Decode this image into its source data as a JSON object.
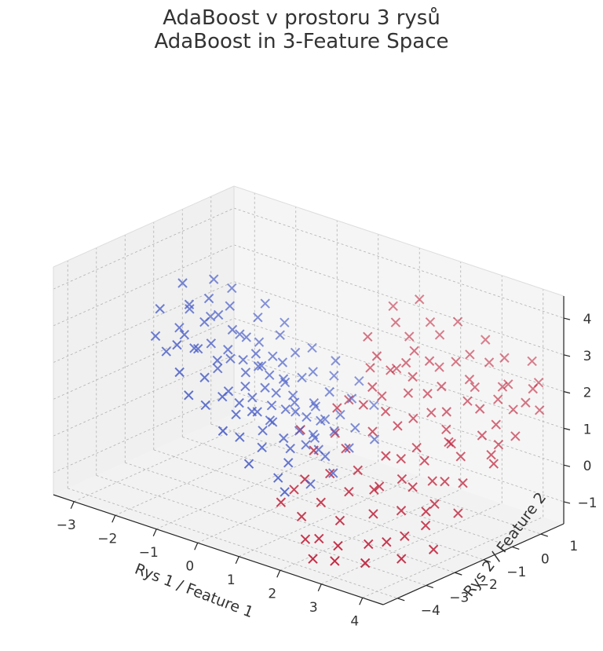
{
  "chart_data": {
    "type": "scatter",
    "projection": "3d",
    "marker": "x",
    "title": "AdaBoost v prostoru 3 rysů",
    "subtitle": "AdaBoost in 3-Feature Space",
    "xlabel": "Rys 1 / Feature 1",
    "ylabel": "Rys 2 / Feature 2",
    "zlabel": "",
    "xticks": [
      "−3",
      "−2",
      "−1",
      "0",
      "1",
      "2",
      "3",
      "4"
    ],
    "yticks": [
      "−4",
      "−3",
      "−2",
      "−1",
      "0",
      "1"
    ],
    "zticks": [
      "−1",
      "0",
      "1",
      "2",
      "3",
      "4"
    ],
    "xlim": [
      -3.5,
      4.5
    ],
    "ylim": [
      -4.5,
      1.8
    ],
    "zlim": [
      -1.6,
      4.6
    ],
    "grid": true,
    "colors": {
      "class0": "#4b5fc8",
      "class1": "#c0213a",
      "pane": "#f2f2f2",
      "grid": "#b0b0b0",
      "axis": "#222222",
      "text": "#333333"
    },
    "series": [
      {
        "values_xyz": [
          [
            -3.0,
            -1.5,
            2.6
          ],
          [
            -2.8,
            -1.0,
            3.2
          ],
          [
            -2.5,
            -1.2,
            2.8
          ],
          [
            -2.3,
            -0.8,
            2.9
          ],
          [
            -2.6,
            -1.4,
            2.2
          ],
          [
            -2.2,
            -1.1,
            2.4
          ],
          [
            -2.0,
            -0.9,
            2.6
          ],
          [
            -2.4,
            -0.6,
            2.3
          ],
          [
            -1.9,
            -1.3,
            2.0
          ],
          [
            -1.8,
            -0.7,
            2.2
          ],
          [
            -2.1,
            -1.6,
            1.9
          ],
          [
            -1.7,
            -1.0,
            1.8
          ],
          [
            -1.6,
            -0.5,
            2.0
          ],
          [
            -1.5,
            -1.2,
            1.7
          ],
          [
            -1.9,
            -0.3,
            1.9
          ],
          [
            -1.4,
            -0.9,
            1.6
          ],
          [
            -1.6,
            -1.5,
            1.5
          ],
          [
            -1.3,
            -0.6,
            1.7
          ],
          [
            -1.2,
            -1.1,
            1.4
          ],
          [
            -1.5,
            -0.2,
            1.8
          ],
          [
            -1.1,
            -0.8,
            1.5
          ],
          [
            -1.0,
            -1.4,
            1.2
          ],
          [
            -1.3,
            -0.4,
            1.3
          ],
          [
            -0.9,
            -0.7,
            1.3
          ],
          [
            -1.2,
            -1.7,
            1.1
          ],
          [
            -0.8,
            -1.0,
            1.1
          ],
          [
            -1.0,
            -0.1,
            1.4
          ],
          [
            -0.7,
            -0.5,
            1.2
          ],
          [
            -0.9,
            -1.3,
            0.9
          ],
          [
            -0.6,
            -0.9,
            1.0
          ],
          [
            -0.8,
            -0.3,
            1.0
          ],
          [
            -0.5,
            -1.2,
            0.8
          ],
          [
            -0.7,
            -1.6,
            0.7
          ],
          [
            -0.4,
            -0.6,
            0.9
          ],
          [
            -0.6,
            0.0,
            1.1
          ],
          [
            -0.3,
            -1.0,
            0.7
          ],
          [
            -0.5,
            -0.4,
            0.6
          ],
          [
            -0.2,
            -0.8,
            0.6
          ],
          [
            -0.4,
            -1.4,
            0.5
          ],
          [
            -0.1,
            -0.3,
            0.7
          ],
          [
            -0.3,
            -1.8,
            0.4
          ],
          [
            0.0,
            -0.7,
            0.5
          ],
          [
            -0.2,
            -0.1,
            0.5
          ],
          [
            0.1,
            -1.1,
            0.3
          ],
          [
            0.2,
            -0.5,
            0.4
          ],
          [
            0.0,
            -1.5,
            0.2
          ],
          [
            0.3,
            -0.9,
            0.2
          ],
          [
            0.1,
            -0.2,
            0.3
          ],
          [
            0.4,
            -1.3,
            0.1
          ],
          [
            0.2,
            -0.7,
            0.0
          ],
          [
            -2.7,
            -0.9,
            2.5
          ],
          [
            -2.2,
            -1.8,
            2.3
          ],
          [
            -1.8,
            -1.9,
            2.1
          ],
          [
            -1.4,
            -1.8,
            1.9
          ],
          [
            -1.1,
            -0.3,
            1.6
          ],
          [
            -0.8,
            -1.9,
            1.0
          ],
          [
            -0.5,
            -1.7,
            0.8
          ],
          [
            -0.2,
            -1.6,
            0.6
          ],
          [
            0.3,
            -1.7,
            0.1
          ],
          [
            0.5,
            -1.0,
            -0.1
          ],
          [
            -2.0,
            -0.5,
            2.7
          ],
          [
            -1.6,
            -0.1,
            2.4
          ],
          [
            -1.2,
            0.1,
            2.0
          ],
          [
            -0.9,
            0.2,
            1.6
          ],
          [
            -0.4,
            0.1,
            1.3
          ],
          [
            0.0,
            0.1,
            0.9
          ],
          [
            0.4,
            -0.1,
            0.5
          ],
          [
            0.6,
            -0.6,
            0.3
          ],
          [
            0.8,
            -1.2,
            -0.1
          ],
          [
            1.0,
            -2.0,
            -0.5
          ],
          [
            -2.9,
            -1.8,
            2.0
          ],
          [
            -2.5,
            -2.0,
            1.8
          ],
          [
            -1.5,
            -2.1,
            1.5
          ],
          [
            -1.0,
            -2.2,
            1.2
          ],
          [
            -0.6,
            -2.3,
            0.9
          ],
          [
            0.1,
            -2.4,
            0.3
          ],
          [
            0.6,
            -2.2,
            0.0
          ],
          [
            1.2,
            -1.5,
            -0.3
          ],
          [
            -1.7,
            0.3,
            2.6
          ],
          [
            -1.3,
            0.4,
            2.2
          ],
          [
            -0.7,
            0.5,
            1.7
          ],
          [
            -0.1,
            0.4,
            1.2
          ],
          [
            0.4,
            0.3,
            0.8
          ],
          [
            0.9,
            -0.3,
            0.4
          ],
          [
            -2.3,
            0.0,
            2.9
          ],
          [
            -1.9,
            -2.4,
            1.6
          ],
          [
            -1.2,
            -2.5,
            1.0
          ],
          [
            -0.3,
            -2.6,
            0.5
          ],
          [
            0.7,
            -2.7,
            -0.2
          ],
          [
            1.1,
            -0.8,
            0.1
          ],
          [
            -2.6,
            -0.2,
            3.1
          ],
          [
            -2.1,
            -2.2,
            2.2
          ],
          [
            -0.2,
            0.6,
            1.5
          ],
          [
            0.3,
            0.7,
            1.1
          ],
          [
            0.8,
            0.5,
            0.7
          ],
          [
            -1.4,
            -2.8,
            1.3
          ],
          [
            -0.5,
            -2.9,
            0.7
          ],
          [
            0.2,
            -3.0,
            0.1
          ],
          [
            1.0,
            -2.9,
            -0.4
          ],
          [
            1.3,
            -0.2,
            0.2
          ]
        ],
        "class": 0
      },
      {
        "values_xyz": [
          [
            0.5,
            0.8,
            1.5
          ],
          [
            0.8,
            0.6,
            2.0
          ],
          [
            1.0,
            1.0,
            1.6
          ],
          [
            1.2,
            0.2,
            1.2
          ],
          [
            1.5,
            0.9,
            2.3
          ],
          [
            1.7,
            0.4,
            1.4
          ],
          [
            1.9,
            1.2,
            1.9
          ],
          [
            2.1,
            0.0,
            1.0
          ],
          [
            2.3,
            0.7,
            1.7
          ],
          [
            2.5,
            1.4,
            2.4
          ],
          [
            2.7,
            0.3,
            1.3
          ],
          [
            2.9,
            1.0,
            1.8
          ],
          [
            3.1,
            -0.2,
            0.8
          ],
          [
            3.3,
            0.6,
            1.5
          ],
          [
            3.5,
            1.3,
            2.0
          ],
          [
            3.7,
            0.1,
            1.1
          ],
          [
            3.9,
            0.9,
            1.6
          ],
          [
            4.1,
            1.5,
            2.2
          ],
          [
            4.3,
            0.4,
            1.2
          ],
          [
            4.4,
            1.1,
            1.7
          ],
          [
            0.6,
            -0.5,
            0.9
          ],
          [
            0.9,
            -1.0,
            0.5
          ],
          [
            1.1,
            -0.3,
            1.1
          ],
          [
            1.3,
            -1.2,
            0.3
          ],
          [
            1.6,
            -0.7,
            0.7
          ],
          [
            1.8,
            -1.5,
            0.0
          ],
          [
            2.0,
            -0.4,
            0.9
          ],
          [
            2.2,
            -1.1,
            0.4
          ],
          [
            2.4,
            -1.8,
            -0.2
          ],
          [
            2.6,
            -0.6,
            0.6
          ],
          [
            2.8,
            -1.4,
            0.1
          ],
          [
            3.0,
            -0.9,
            0.5
          ],
          [
            3.2,
            -2.0,
            -0.4
          ],
          [
            3.4,
            -1.2,
            0.2
          ],
          [
            3.6,
            -0.5,
            0.7
          ],
          [
            3.8,
            -1.7,
            -0.1
          ],
          [
            4.0,
            -1.0,
            0.3
          ],
          [
            4.2,
            -0.3,
            0.9
          ],
          [
            0.7,
            1.4,
            2.6
          ],
          [
            1.4,
            1.6,
            2.8
          ],
          [
            2.0,
            1.7,
            3.0
          ],
          [
            2.6,
            1.8,
            2.7
          ],
          [
            3.2,
            1.6,
            2.5
          ],
          [
            3.8,
            1.7,
            2.6
          ],
          [
            1.0,
            -2.2,
            -0.3
          ],
          [
            1.6,
            -2.5,
            -0.6
          ],
          [
            2.2,
            -2.7,
            -0.8
          ],
          [
            2.8,
            -2.4,
            -0.5
          ],
          [
            3.4,
            -2.8,
            -0.9
          ],
          [
            4.0,
            -2.3,
            -0.4
          ],
          [
            0.4,
            0.2,
            0.8
          ],
          [
            0.9,
            0.3,
            1.3
          ],
          [
            1.5,
            -0.1,
            1.0
          ],
          [
            2.1,
            0.5,
            1.5
          ],
          [
            2.7,
            1.1,
            1.9
          ],
          [
            3.3,
            -0.4,
            0.9
          ],
          [
            3.9,
            0.3,
            1.4
          ],
          [
            4.4,
            -0.5,
            0.8
          ],
          [
            1.2,
            0.5,
            1.8
          ],
          [
            1.8,
            1.0,
            2.1
          ],
          [
            2.4,
            0.2,
            1.2
          ],
          [
            3.0,
            0.6,
            1.6
          ],
          [
            3.6,
            0.8,
            1.8
          ],
          [
            4.2,
            0.9,
            1.9
          ],
          [
            0.8,
            -1.6,
            0.2
          ],
          [
            1.4,
            -1.9,
            -0.1
          ],
          [
            2.0,
            -2.1,
            -0.3
          ],
          [
            2.6,
            -1.9,
            0.0
          ],
          [
            3.2,
            -1.6,
            0.1
          ],
          [
            3.8,
            -2.0,
            -0.2
          ],
          [
            1.1,
            1.3,
            2.4
          ],
          [
            1.7,
            1.5,
            2.6
          ],
          [
            2.3,
            1.2,
            2.2
          ],
          [
            2.9,
            1.5,
            2.3
          ],
          [
            3.5,
            1.1,
            2.0
          ],
          [
            4.1,
            1.3,
            2.1
          ],
          [
            0.6,
            -2.0,
            -0.8
          ],
          [
            1.2,
            -2.6,
            -1.1
          ],
          [
            1.9,
            -3.0,
            -1.3
          ],
          [
            2.5,
            -3.2,
            -1.2
          ],
          [
            3.1,
            -3.0,
            -1.0
          ],
          [
            3.7,
            -2.6,
            -0.7
          ],
          [
            4.3,
            -1.6,
            -0.2
          ],
          [
            0.3,
            1.0,
            2.2
          ],
          [
            0.5,
            1.6,
            2.9
          ],
          [
            1.0,
            1.8,
            3.2
          ],
          [
            1.5,
            -2.9,
            -1.5
          ],
          [
            2.1,
            -3.5,
            -1.6
          ],
          [
            2.7,
            -3.6,
            -1.4
          ],
          [
            3.3,
            -3.4,
            -1.3
          ],
          [
            3.9,
            -3.0,
            -1.1
          ],
          [
            4.4,
            -2.6,
            -0.8
          ],
          [
            0.2,
            -1.2,
            0.4
          ],
          [
            0.7,
            -2.6,
            -0.9
          ],
          [
            1.3,
            0.9,
            1.9
          ],
          [
            2.5,
            -1.0,
            0.4
          ],
          [
            3.7,
            -1.2,
            0.3
          ],
          [
            4.1,
            0.1,
            1.0
          ],
          [
            2.9,
            0.0,
            1.0
          ],
          [
            1.6,
            0.7,
            1.7
          ]
        ],
        "class": 1
      }
    ]
  }
}
